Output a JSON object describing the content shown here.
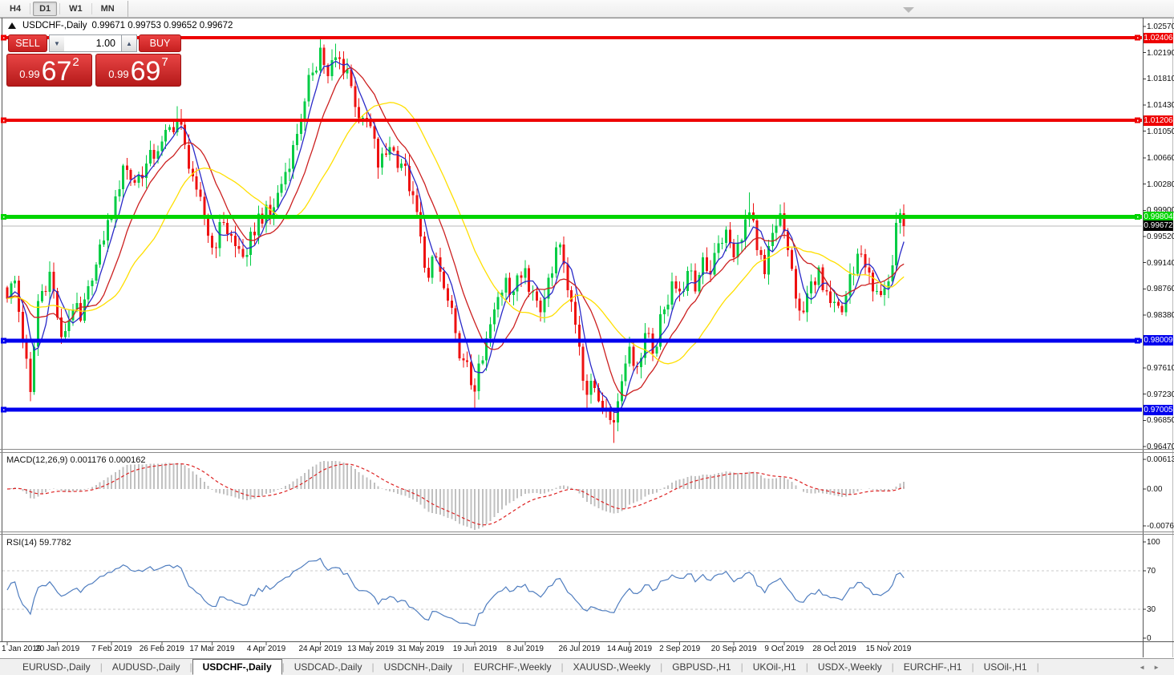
{
  "toolbar": {
    "timeframes": [
      {
        "label": "H4",
        "active": false
      },
      {
        "label": "D1",
        "active": true
      },
      {
        "label": "W1",
        "active": false
      },
      {
        "label": "MN",
        "active": false
      }
    ]
  },
  "chart_header": {
    "symbol_title": "USDCHF-,Daily",
    "ohlc": "0.99671 0.99753 0.99652 0.99672"
  },
  "trade_panel": {
    "sell_label": "SELL",
    "buy_label": "BUY",
    "volume": "1.00",
    "volume_down_glyph": "▼",
    "volume_up_glyph": "▲",
    "sell_price": {
      "prefix": "0.99",
      "big": "67",
      "sup": "2"
    },
    "buy_price": {
      "prefix": "0.99",
      "big": "69",
      "sup": "7"
    }
  },
  "price_axis": {
    "ticks": [
      "1.02570",
      "1.02190",
      "1.01810",
      "1.01430",
      "1.01050",
      "1.00660",
      "1.00280",
      "0.99900",
      "0.99520",
      "0.99140",
      "0.98760",
      "0.98380",
      "0.97610",
      "0.97230",
      "0.96850",
      "0.96470"
    ],
    "current": {
      "label": "0.99672",
      "value": 0.99672,
      "bg": "#000000"
    }
  },
  "levels": [
    {
      "label": "1.02406",
      "value": 1.02406,
      "color": "#ee0000",
      "thickness": 4,
      "handles": [
        "left",
        "right"
      ]
    },
    {
      "label": "1.01206",
      "value": 1.01206,
      "color": "#ee0000",
      "thickness": 4,
      "handles": [
        "left",
        "right"
      ]
    },
    {
      "label": "0.99804",
      "value": 0.99804,
      "color": "#00d400",
      "thickness": 5,
      "handles": [
        "left",
        "right"
      ]
    },
    {
      "label": "0.98009",
      "value": 0.98009,
      "color": "#0000ee",
      "thickness": 5,
      "handles": [
        "left",
        "right"
      ]
    },
    {
      "label": "0.97005",
      "value": 0.97005,
      "color": "#0000ee",
      "thickness": 5,
      "handles": [
        "left"
      ]
    }
  ],
  "macd_pane": {
    "label": "MACD(12,26,9) 0.001176 0.000162",
    "axis": [
      {
        "text": "0.00613",
        "value": 0.00613
      },
      {
        "text": "0.00",
        "value": 0.0
      },
      {
        "text": "-0.007612",
        "value": -0.007612
      }
    ]
  },
  "rsi_pane": {
    "label": "RSI(14) 59.7782",
    "axis": [
      {
        "text": "100",
        "value": 100
      },
      {
        "text": "70",
        "value": 70
      },
      {
        "text": "30",
        "value": 30
      },
      {
        "text": "0",
        "value": 0
      }
    ],
    "level_lines": [
      70,
      30
    ]
  },
  "date_axis": {
    "labels": [
      {
        "text": "1 Jan 2019",
        "day": 0
      },
      {
        "text": "20 Jan 2019",
        "day": 13
      },
      {
        "text": "7 Feb 2019",
        "day": 27
      },
      {
        "text": "26 Feb 2019",
        "day": 40
      },
      {
        "text": "17 Mar 2019",
        "day": 53
      },
      {
        "text": "4 Apr 2019",
        "day": 67
      },
      {
        "text": "24 Apr 2019",
        "day": 81
      },
      {
        "text": "13 May 2019",
        "day": 94
      },
      {
        "text": "31 May 2019",
        "day": 107
      },
      {
        "text": "19 Jun 2019",
        "day": 121
      },
      {
        "text": "8 Jul 2019",
        "day": 134
      },
      {
        "text": "26 Jul 2019",
        "day": 148
      },
      {
        "text": "14 Aug 2019",
        "day": 161
      },
      {
        "text": "2 Sep 2019",
        "day": 174
      },
      {
        "text": "20 Sep 2019",
        "day": 188
      },
      {
        "text": "9 Oct 2019",
        "day": 201
      },
      {
        "text": "28 Oct 2019",
        "day": 214
      },
      {
        "text": "15 Nov 2019",
        "day": 228
      }
    ]
  },
  "tabs": {
    "items": [
      {
        "label": "EURUSD-,Daily",
        "active": false
      },
      {
        "label": "AUDUSD-,Daily",
        "active": false
      },
      {
        "label": "USDCHF-,Daily",
        "active": true
      },
      {
        "label": "USDCAD-,Daily",
        "active": false
      },
      {
        "label": "USDCNH-,Daily",
        "active": false
      },
      {
        "label": "EURCHF-,Weekly",
        "active": false
      },
      {
        "label": "XAUUSD-,Weekly",
        "active": false
      },
      {
        "label": "GBPUSD-,H1",
        "active": false
      },
      {
        "label": "UKOil-,H1",
        "active": false
      },
      {
        "label": "USDX-,Weekly",
        "active": false
      },
      {
        "label": "EURCHF-,H1",
        "active": false
      },
      {
        "label": "USOil-,H1",
        "active": false
      }
    ],
    "scroll_left": "◄",
    "scroll_right": "►"
  },
  "chart_data": {
    "type": "candlestick",
    "symbol": "USDCHF",
    "timeframe": "Daily",
    "visible_range": {
      "start": "1 Jan 2019",
      "end": "22 Nov 2019",
      "price_min": 0.9647,
      "price_max": 1.0257
    },
    "last_ohlc": {
      "open": 0.99671,
      "high": 0.99753,
      "low": 0.99652,
      "close": 0.99672
    },
    "horizontal_lines": [
      1.02406,
      1.01206,
      0.99804,
      0.98009,
      0.97005
    ],
    "close_anchors": [
      [
        0,
        0.9862
      ],
      [
        2,
        0.9888
      ],
      [
        4,
        0.98
      ],
      [
        6,
        0.9726
      ],
      [
        8,
        0.9858
      ],
      [
        11,
        0.9901
      ],
      [
        14,
        0.9806
      ],
      [
        17,
        0.9846
      ],
      [
        19,
        0.983
      ],
      [
        22,
        0.9888
      ],
      [
        25,
        0.9946
      ],
      [
        28,
        1.001
      ],
      [
        30,
        1.0055
      ],
      [
        33,
        1.003
      ],
      [
        36,
        1.0058
      ],
      [
        40,
        1.009
      ],
      [
        44,
        1.0122
      ],
      [
        46,
        1.0085
      ],
      [
        49,
        1.002
      ],
      [
        53,
        0.9936
      ],
      [
        56,
        0.9972
      ],
      [
        59,
        0.9938
      ],
      [
        62,
        0.9925
      ],
      [
        65,
        0.9985
      ],
      [
        68,
        0.9982
      ],
      [
        71,
        1.0028
      ],
      [
        74,
        1.0085
      ],
      [
        77,
        1.0148
      ],
      [
        79,
        1.019
      ],
      [
        81,
        1.0226
      ],
      [
        83,
        1.0185
      ],
      [
        85,
        1.0212
      ],
      [
        88,
        1.0195
      ],
      [
        90,
        1.014
      ],
      [
        92,
        1.0124
      ],
      [
        94,
        1.0112
      ],
      [
        96,
        1.0052
      ],
      [
        99,
        1.0082
      ],
      [
        102,
        1.0058
      ],
      [
        105,
        1.0012
      ],
      [
        107,
        0.9952
      ],
      [
        109,
        0.9892
      ],
      [
        111,
        0.9922
      ],
      [
        113,
        0.9877
      ],
      [
        116,
        0.9812
      ],
      [
        118,
        0.9772
      ],
      [
        121,
        0.9727
      ],
      [
        123,
        0.9772
      ],
      [
        126,
        0.9846
      ],
      [
        129,
        0.9892
      ],
      [
        131,
        0.9872
      ],
      [
        134,
        0.9906
      ],
      [
        136,
        0.9872
      ],
      [
        138,
        0.9842
      ],
      [
        140,
        0.9892
      ],
      [
        142,
        0.9936
      ],
      [
        144,
        0.9912
      ],
      [
        146,
        0.9857
      ],
      [
        148,
        0.9792
      ],
      [
        150,
        0.9722
      ],
      [
        152,
        0.9732
      ],
      [
        155,
        0.9701
      ],
      [
        157,
        0.9682
      ],
      [
        159,
        0.9742
      ],
      [
        161,
        0.9792
      ],
      [
        163,
        0.9762
      ],
      [
        165,
        0.9812
      ],
      [
        167,
        0.9782
      ],
      [
        170,
        0.9846
      ],
      [
        172,
        0.9887
      ],
      [
        174,
        0.9872
      ],
      [
        176,
        0.9902
      ],
      [
        178,
        0.9872
      ],
      [
        180,
        0.9922
      ],
      [
        182,
        0.9897
      ],
      [
        184,
        0.9942
      ],
      [
        186,
        0.9962
      ],
      [
        188,
        0.9922
      ],
      [
        190,
        0.9947
      ],
      [
        192,
        0.9987
      ],
      [
        194,
        0.9932
      ],
      [
        196,
        0.9897
      ],
      [
        198,
        0.9957
      ],
      [
        200,
        0.9986
      ],
      [
        202,
        0.9932
      ],
      [
        204,
        0.9862
      ],
      [
        206,
        0.9842
      ],
      [
        208,
        0.9887
      ],
      [
        210,
        0.9907
      ],
      [
        212,
        0.9872
      ],
      [
        214,
        0.9857
      ],
      [
        216,
        0.9842
      ],
      [
        218,
        0.9897
      ],
      [
        220,
        0.9927
      ],
      [
        222,
        0.9907
      ],
      [
        224,
        0.9872
      ],
      [
        226,
        0.9867
      ],
      [
        228,
        0.9887
      ],
      [
        229,
        0.991
      ],
      [
        230,
        0.9972
      ],
      [
        231,
        0.9986
      ],
      [
        232,
        0.99672
      ]
    ],
    "wick_events": [
      {
        "i": 6,
        "side": "low",
        "price": 0.9713
      },
      {
        "i": 14,
        "side": "low",
        "price": 0.9796
      },
      {
        "i": 44,
        "side": "high",
        "price": 1.0141
      },
      {
        "i": 81,
        "side": "high",
        "price": 1.024
      },
      {
        "i": 85,
        "side": "high",
        "price": 1.0232
      },
      {
        "i": 121,
        "side": "low",
        "price": 0.9699
      },
      {
        "i": 150,
        "side": "low",
        "price": 0.97
      },
      {
        "i": 157,
        "side": "low",
        "price": 0.9652
      },
      {
        "i": 192,
        "side": "high",
        "price": 1.0016
      },
      {
        "i": 200,
        "side": "high",
        "price": 0.9991
      },
      {
        "i": 231,
        "side": "high",
        "price": 0.9991
      },
      {
        "i": 232,
        "side": "high",
        "price": 0.99753
      },
      {
        "i": 232,
        "side": "low",
        "price": 0.99652
      }
    ],
    "moving_averages": [
      {
        "name": "fast",
        "period": 5,
        "color": "#2a2ac8"
      },
      {
        "name": "mid",
        "period": 12,
        "color": "#cc2020"
      },
      {
        "name": "slow",
        "period": 26,
        "color": "#ffdf00"
      }
    ],
    "indicators": [
      {
        "name": "MACD",
        "params": [
          12,
          26,
          9
        ],
        "values": [
          0.001176,
          0.000162
        ]
      },
      {
        "name": "RSI",
        "params": [
          14
        ],
        "value": 59.7782
      }
    ],
    "colors": {
      "bull": "#00cc44",
      "bear": "#ee1111",
      "current_price_line": "#b8b8b8",
      "macd_histogram": "#c0c0c0",
      "macd_signal": "#dd2222",
      "rsi_line": "#4f7dbf",
      "rsi_level_line": "#c8c8c8"
    }
  }
}
